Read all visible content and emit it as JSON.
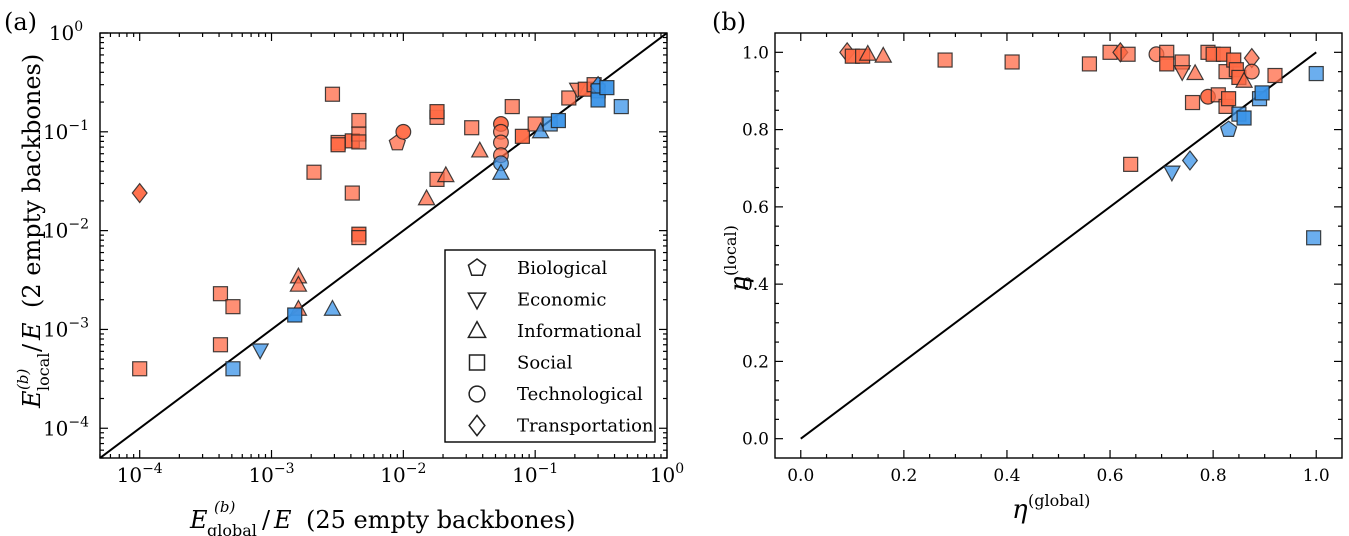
{
  "colors": {
    "red": "#ff6a45",
    "blue": "#3a93e8",
    "axis": "#000000"
  },
  "icons": {
    "biological": "pentagon-marker",
    "economic": "triangle-down-marker",
    "informational": "triangle-up-marker",
    "social": "square-marker",
    "technological": "circle-marker",
    "transportation": "diamond-marker"
  },
  "chart_data": [
    {
      "panel_label": "(a)",
      "type": "scatter",
      "xscale": "log",
      "yscale": "log",
      "xlim": [
        5e-05,
        1
      ],
      "ylim": [
        5e-05,
        1
      ],
      "x_ticks": [
        0.0001,
        0.001,
        0.01,
        0.1,
        1
      ],
      "x_tick_labels": [
        "10^-4",
        "10^-3",
        "10^-2",
        "10^-1",
        "10^0"
      ],
      "y_ticks": [
        0.0001,
        0.001,
        0.01,
        0.1,
        1
      ],
      "y_tick_labels": [
        "10^-4",
        "10^-3",
        "10^-2",
        "10^-1",
        "10^0"
      ],
      "xlabel_note": "(25 empty backbones)",
      "ylabel_note": "(2 empty backbones)",
      "diagonal": "y = x",
      "legend": {
        "position": "lower-right",
        "entries": [
          {
            "label": "Biological",
            "marker": "pentagon"
          },
          {
            "label": "Economic",
            "marker": "triangle-down"
          },
          {
            "label": "Informational",
            "marker": "triangle-up"
          },
          {
            "label": "Social",
            "marker": "square"
          },
          {
            "label": "Technological",
            "marker": "circle"
          },
          {
            "label": "Transportation",
            "marker": "diamond"
          }
        ]
      },
      "points": [
        {
          "x": 0.0001,
          "y": 0.0004,
          "m": "square",
          "c": "red"
        },
        {
          "x": 0.00041,
          "y": 0.0023,
          "m": "square",
          "c": "red"
        },
        {
          "x": 0.00041,
          "y": 0.0007,
          "m": "square",
          "c": "red"
        },
        {
          "x": 0.00051,
          "y": 0.0017,
          "m": "square",
          "c": "red"
        },
        {
          "x": 0.00051,
          "y": 0.0004,
          "m": "square",
          "c": "blue"
        },
        {
          "x": 0.00082,
          "y": 0.00062,
          "m": "triangle-down",
          "c": "blue"
        },
        {
          "x": 0.0016,
          "y": 0.0034,
          "m": "triangle-up",
          "c": "red"
        },
        {
          "x": 0.0016,
          "y": 0.0028,
          "m": "triangle-up",
          "c": "red"
        },
        {
          "x": 0.0016,
          "y": 0.0016,
          "m": "triangle-up",
          "c": "red"
        },
        {
          "x": 0.0015,
          "y": 0.0014,
          "m": "square",
          "c": "blue",
          "dark": true
        },
        {
          "x": 0.0029,
          "y": 0.0016,
          "m": "triangle-up",
          "c": "blue"
        },
        {
          "x": 0.0021,
          "y": 0.039,
          "m": "square",
          "c": "red"
        },
        {
          "x": 0.0029,
          "y": 0.24,
          "m": "square",
          "c": "red"
        },
        {
          "x": 0.0032,
          "y": 0.078,
          "m": "square",
          "c": "red"
        },
        {
          "x": 0.0032,
          "y": 0.074,
          "m": "square",
          "c": "red",
          "dark": true
        },
        {
          "x": 0.0041,
          "y": 0.081,
          "m": "square",
          "c": "red",
          "dark": true
        },
        {
          "x": 0.0041,
          "y": 0.024,
          "m": "square",
          "c": "red"
        },
        {
          "x": 0.0046,
          "y": 0.13,
          "m": "square",
          "c": "red"
        },
        {
          "x": 0.0046,
          "y": 0.095,
          "m": "square",
          "c": "red"
        },
        {
          "x": 0.0046,
          "y": 0.079,
          "m": "square",
          "c": "red"
        },
        {
          "x": 0.0046,
          "y": 0.0092,
          "m": "square",
          "c": "red",
          "dark": true
        },
        {
          "x": 0.0046,
          "y": 0.0085,
          "m": "square",
          "c": "red"
        },
        {
          "x": 0.009,
          "y": 0.077,
          "m": "pentagon",
          "c": "red"
        },
        {
          "x": 0.01,
          "y": 0.1,
          "m": "circle",
          "c": "red",
          "dark": true
        },
        {
          "x": 0.015,
          "y": 0.021,
          "m": "triangle-up",
          "c": "red"
        },
        {
          "x": 0.018,
          "y": 0.14,
          "m": "square",
          "c": "red"
        },
        {
          "x": 0.018,
          "y": 0.16,
          "m": "square",
          "c": "red",
          "dark": true
        },
        {
          "x": 0.018,
          "y": 0.033,
          "m": "square",
          "c": "red"
        },
        {
          "x": 0.021,
          "y": 0.036,
          "m": "triangle-up",
          "c": "red"
        },
        {
          "x": 0.033,
          "y": 0.11,
          "m": "square",
          "c": "red"
        },
        {
          "x": 0.038,
          "y": 0.064,
          "m": "triangle-up",
          "c": "red"
        },
        {
          "x": 0.055,
          "y": 0.12,
          "m": "circle",
          "c": "red",
          "dark": true
        },
        {
          "x": 0.055,
          "y": 0.1,
          "m": "circle",
          "c": "red"
        },
        {
          "x": 0.055,
          "y": 0.078,
          "m": "circle",
          "c": "red"
        },
        {
          "x": 0.055,
          "y": 0.058,
          "m": "circle",
          "c": "red"
        },
        {
          "x": 0.055,
          "y": 0.048,
          "m": "circle",
          "c": "blue"
        },
        {
          "x": 0.055,
          "y": 0.038,
          "m": "triangle-up",
          "c": "blue"
        },
        {
          "x": 0.067,
          "y": 0.18,
          "m": "square",
          "c": "red"
        },
        {
          "x": 0.08,
          "y": 0.09,
          "m": "square",
          "c": "red",
          "dark": true
        },
        {
          "x": 0.1,
          "y": 0.12,
          "m": "square",
          "c": "red"
        },
        {
          "x": 0.11,
          "y": 0.1,
          "m": "triangle-up",
          "c": "blue"
        },
        {
          "x": 0.13,
          "y": 0.12,
          "m": "square",
          "c": "blue"
        },
        {
          "x": 0.15,
          "y": 0.13,
          "m": "square",
          "c": "blue",
          "dark": true
        },
        {
          "x": 0.18,
          "y": 0.22,
          "m": "square",
          "c": "red"
        },
        {
          "x": 0.21,
          "y": 0.27,
          "m": "triangle-down",
          "c": "red"
        },
        {
          "x": 0.24,
          "y": 0.27,
          "m": "square",
          "c": "red",
          "dark": true
        },
        {
          "x": 0.28,
          "y": 0.3,
          "m": "square",
          "c": "red"
        },
        {
          "x": 0.3,
          "y": 0.29,
          "m": "diamond",
          "c": "blue",
          "dark": true
        },
        {
          "x": 0.3,
          "y": 0.26,
          "m": "square",
          "c": "blue"
        },
        {
          "x": 0.3,
          "y": 0.21,
          "m": "square",
          "c": "blue",
          "dark": true
        },
        {
          "x": 0.35,
          "y": 0.28,
          "m": "square",
          "c": "blue",
          "dark": true
        },
        {
          "x": 0.45,
          "y": 0.18,
          "m": "square",
          "c": "blue"
        },
        {
          "x": 0.0001,
          "y": 0.024,
          "m": "diamond",
          "c": "red",
          "dark": true
        }
      ]
    },
    {
      "panel_label": "(b)",
      "type": "scatter",
      "xlim": [
        -0.05,
        1.05
      ],
      "ylim": [
        -0.05,
        1.05
      ],
      "x_ticks": [
        0.0,
        0.2,
        0.4,
        0.6,
        0.8,
        1.0
      ],
      "x_tick_labels": [
        "0.0",
        "0.2",
        "0.4",
        "0.6",
        "0.8",
        "1.0"
      ],
      "y_ticks": [
        0.0,
        0.2,
        0.4,
        0.6,
        0.8,
        1.0
      ],
      "y_tick_labels": [
        "0.0",
        "0.2",
        "0.4",
        "0.6",
        "0.8",
        "1.0"
      ],
      "diagonal": "y = x",
      "points": [
        {
          "x": 0.09,
          "y": 1.0,
          "m": "diamond",
          "c": "red"
        },
        {
          "x": 0.1,
          "y": 0.99,
          "m": "square",
          "c": "red",
          "dark": true
        },
        {
          "x": 0.12,
          "y": 0.99,
          "m": "square",
          "c": "red",
          "dark": true
        },
        {
          "x": 0.13,
          "y": 0.995,
          "m": "triangle-up",
          "c": "red"
        },
        {
          "x": 0.16,
          "y": 0.99,
          "m": "triangle-up",
          "c": "red"
        },
        {
          "x": 0.28,
          "y": 0.98,
          "m": "square",
          "c": "red"
        },
        {
          "x": 0.41,
          "y": 0.975,
          "m": "square",
          "c": "red"
        },
        {
          "x": 0.56,
          "y": 0.97,
          "m": "square",
          "c": "red"
        },
        {
          "x": 0.6,
          "y": 1.0,
          "m": "square",
          "c": "red"
        },
        {
          "x": 0.62,
          "y": 1.0,
          "m": "diamond",
          "c": "red",
          "dark": true
        },
        {
          "x": 0.635,
          "y": 0.995,
          "m": "square",
          "c": "red"
        },
        {
          "x": 0.64,
          "y": 0.71,
          "m": "square",
          "c": "red"
        },
        {
          "x": 0.69,
          "y": 0.995,
          "m": "circle",
          "c": "red"
        },
        {
          "x": 0.71,
          "y": 1.0,
          "m": "square",
          "c": "red"
        },
        {
          "x": 0.71,
          "y": 0.97,
          "m": "square",
          "c": "red",
          "dark": true
        },
        {
          "x": 0.72,
          "y": 0.69,
          "m": "triangle-down",
          "c": "blue"
        },
        {
          "x": 0.74,
          "y": 0.975,
          "m": "square",
          "c": "red"
        },
        {
          "x": 0.74,
          "y": 0.95,
          "m": "triangle-down",
          "c": "red"
        },
        {
          "x": 0.755,
          "y": 0.72,
          "m": "diamond",
          "c": "blue"
        },
        {
          "x": 0.76,
          "y": 0.87,
          "m": "square",
          "c": "red"
        },
        {
          "x": 0.765,
          "y": 0.945,
          "m": "triangle-up",
          "c": "red"
        },
        {
          "x": 0.79,
          "y": 1.0,
          "m": "square",
          "c": "red"
        },
        {
          "x": 0.79,
          "y": 0.885,
          "m": "circle",
          "c": "red",
          "dark": true
        },
        {
          "x": 0.8,
          "y": 0.995,
          "m": "square",
          "c": "red",
          "dark": true
        },
        {
          "x": 0.81,
          "y": 0.89,
          "m": "square",
          "c": "red"
        },
        {
          "x": 0.82,
          "y": 0.995,
          "m": "square",
          "c": "red",
          "dark": true
        },
        {
          "x": 0.825,
          "y": 0.95,
          "m": "square",
          "c": "red"
        },
        {
          "x": 0.825,
          "y": 0.86,
          "m": "square",
          "c": "red"
        },
        {
          "x": 0.83,
          "y": 0.88,
          "m": "square",
          "c": "red",
          "dark": true
        },
        {
          "x": 0.83,
          "y": 0.8,
          "m": "pentagon",
          "c": "blue"
        },
        {
          "x": 0.84,
          "y": 0.98,
          "m": "square",
          "c": "red",
          "dark": true
        },
        {
          "x": 0.845,
          "y": 0.955,
          "m": "square",
          "c": "red",
          "dark": true
        },
        {
          "x": 0.85,
          "y": 0.935,
          "m": "square",
          "c": "red",
          "dark": true
        },
        {
          "x": 0.85,
          "y": 0.84,
          "m": "square",
          "c": "blue"
        },
        {
          "x": 0.86,
          "y": 0.925,
          "m": "triangle-up",
          "c": "red"
        },
        {
          "x": 0.86,
          "y": 0.83,
          "m": "square",
          "c": "blue",
          "dark": true
        },
        {
          "x": 0.875,
          "y": 0.985,
          "m": "diamond",
          "c": "red"
        },
        {
          "x": 0.875,
          "y": 0.95,
          "m": "circle",
          "c": "red"
        },
        {
          "x": 0.89,
          "y": 0.88,
          "m": "square",
          "c": "blue"
        },
        {
          "x": 0.895,
          "y": 0.895,
          "m": "square",
          "c": "blue",
          "dark": true
        },
        {
          "x": 0.92,
          "y": 0.94,
          "m": "square",
          "c": "red"
        },
        {
          "x": 0.995,
          "y": 0.52,
          "m": "square",
          "c": "blue"
        },
        {
          "x": 1.0,
          "y": 0.945,
          "m": "square",
          "c": "blue"
        }
      ]
    }
  ]
}
